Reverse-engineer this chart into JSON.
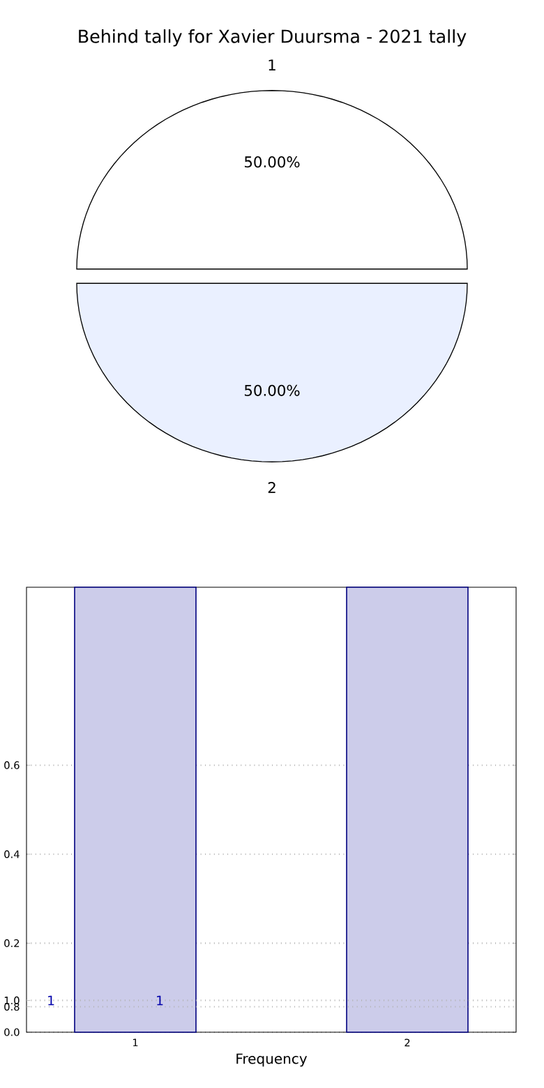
{
  "chart_data": [
    {
      "type": "pie",
      "title": "Behind tally for Xavier Duursma - 2021 tally",
      "categories": [
        "1",
        "2"
      ],
      "values": [
        50,
        50
      ],
      "colors": [
        "#ffffff",
        "#eaf0ff"
      ],
      "value_labels": [
        "50.00%",
        "50.00%"
      ]
    },
    {
      "type": "bar",
      "categories": [
        "1",
        "2"
      ],
      "values": [
        1,
        1
      ],
      "color": "#ccccea",
      "xlabel": "Frequency",
      "ylim": [
        0,
        1.0
      ],
      "yticks": [
        {
          "value": 0,
          "label": "0.0"
        },
        {
          "value": 0.2,
          "label": "0.2"
        },
        {
          "value": 0.4,
          "label": "0.4"
        },
        {
          "value": 0.6,
          "label": "0.6"
        }
      ],
      "y2lim": [
        0,
        14
      ],
      "y2ticks": [
        {
          "value": 0.8,
          "label": "0.8"
        },
        {
          "value": 1.0,
          "label": "1.0"
        }
      ],
      "grid": true,
      "annotations": [
        "1",
        "1"
      ]
    }
  ]
}
